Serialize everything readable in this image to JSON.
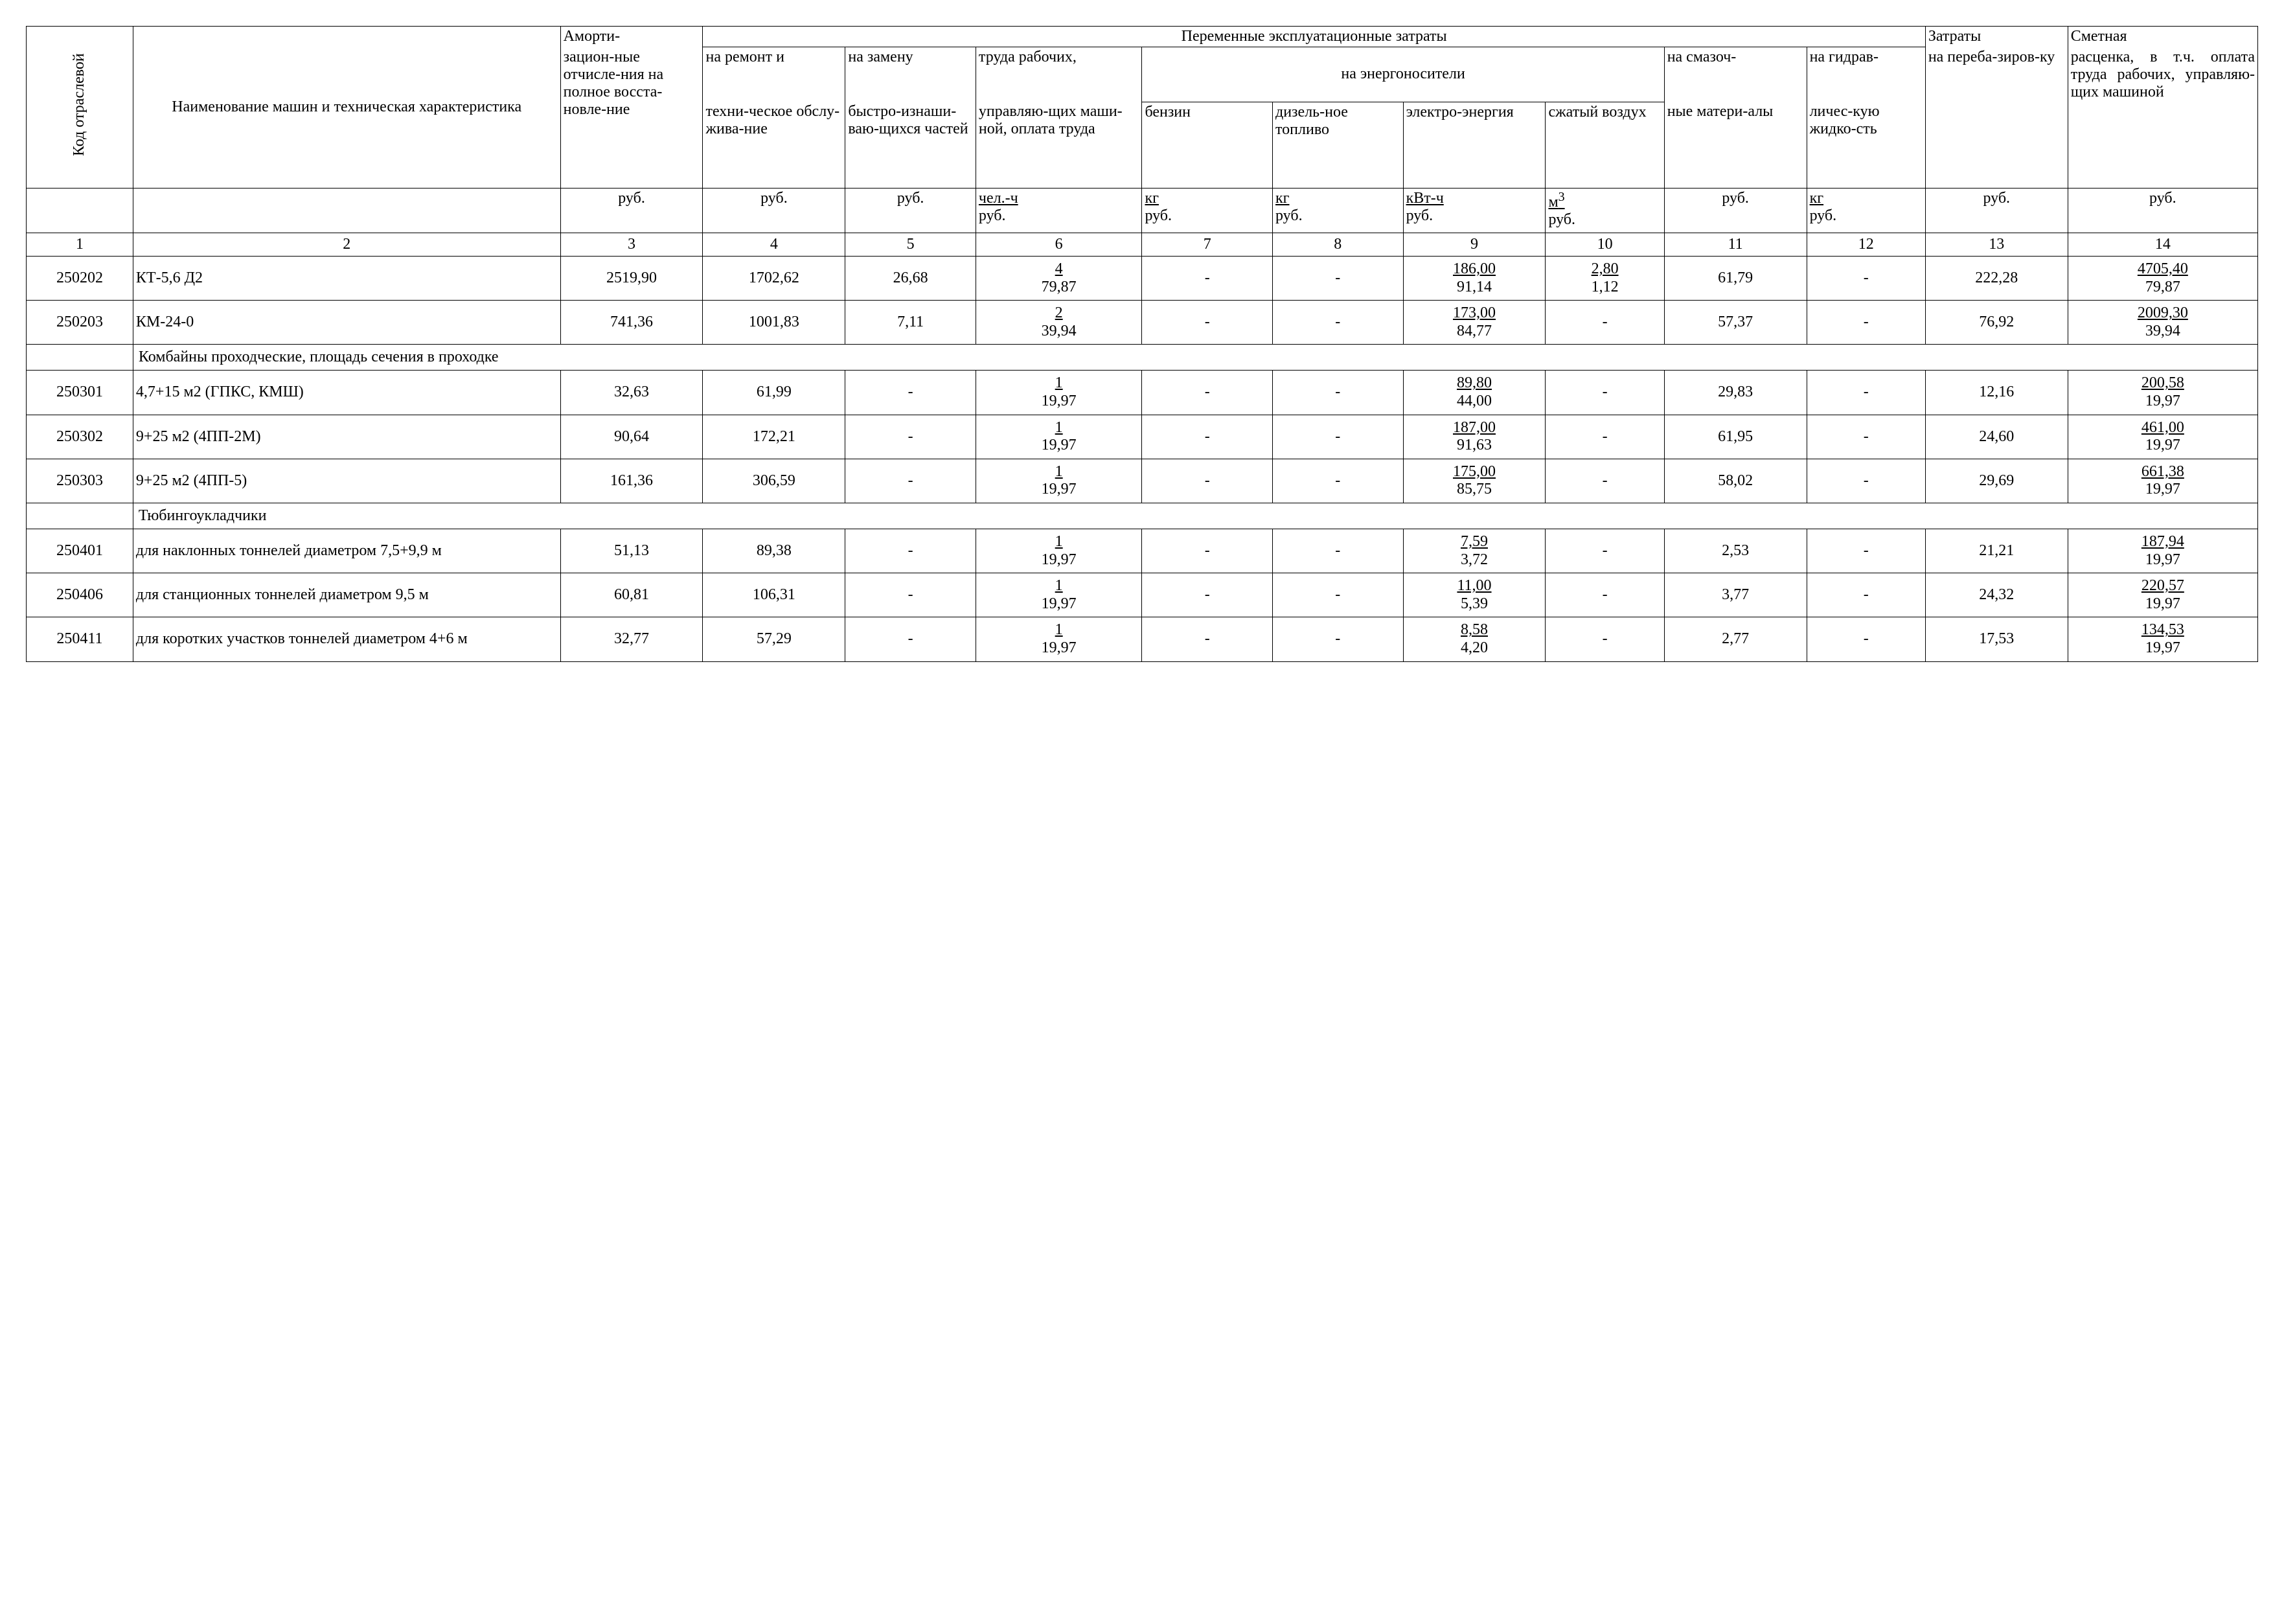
{
  "header": {
    "col1": "Код отраслевой",
    "col2": "Наименование машин и техническая характеристика",
    "col3_top": "Аморти-",
    "col3": "зацион-\nные отчисле-\nния на полное восста-\nновле-\nние",
    "var_costs": "Переменные эксплуатационные затраты",
    "col4_top": "на ремонт и",
    "col4": "техни-\nческое обслу-\nжива-\nние",
    "col5_top": "на замену",
    "col5": "быстро-\nизнаши-\nваю-\nщихся частей",
    "col6_top": "труда рабочих,",
    "col6": "управляю-щих маши-\nной, оплата труда",
    "energy": "на энергоносители",
    "col7": "бензин",
    "col8": "дизель-\nное топливо",
    "col9": "электро-\nэнергия",
    "col10": "сжатый воздух",
    "col11_top": "на смазоч-",
    "col11": "ные матери-\nалы",
    "col12_top": "на гидрав-",
    "col12": "личес-\nкую жидко-\nсть",
    "col13_top": "Затраты",
    "col13": "на переба-\nзиров-\nку",
    "col14_top": "Сметная",
    "col14": "расценка, в т.ч. оплата труда рабочих, управляю-\nщих машиной",
    "u3": "руб.",
    "u4": "руб.",
    "u5": "руб.",
    "u6t": "чел.-ч",
    "u6b": "руб.",
    "u7t": "кг",
    "u7b": "руб.",
    "u8t": "кг",
    "u8b": "руб.",
    "u9t": "кВт-ч",
    "u9b": "руб.",
    "u10t": "м",
    "u10sup": "3",
    "u10b": "руб.",
    "u11": "руб.",
    "u12t": "кг",
    "u12b": "руб.",
    "u13": "руб.",
    "u14": "руб."
  },
  "colnums": [
    "1",
    "2",
    "3",
    "4",
    "5",
    "6",
    "7",
    "8",
    "9",
    "10",
    "11",
    "12",
    "13",
    "14"
  ],
  "rows": [
    {
      "type": "data",
      "code": "250202",
      "name": "КТ-5,6 Д2",
      "c3": "2519,90",
      "c4": "1702,62",
      "c5": "26,68",
      "c6t": "4",
      "c6b": "79,87",
      "c7": "-",
      "c8": "-",
      "c9t": "186,00",
      "c9b": "91,14",
      "c10t": "2,80",
      "c10b": "1,12",
      "c11": "61,79",
      "c12": "-",
      "c13": "222,28",
      "c14t": "4705,40",
      "c14b": "79,87"
    },
    {
      "type": "data",
      "code": "250203",
      "name": "КМ-24-0",
      "c3": "741,36",
      "c4": "1001,83",
      "c5": "7,11",
      "c6t": "2",
      "c6b": "39,94",
      "c7": "-",
      "c8": "-",
      "c9t": "173,00",
      "c9b": "84,77",
      "c10t": "",
      "c10b": "-",
      "c11": "57,37",
      "c12": "-",
      "c13": "76,92",
      "c14t": "2009,30",
      "c14b": "39,94"
    },
    {
      "type": "section",
      "text": "Комбайны проходческие, площадь сечения в проходке"
    },
    {
      "type": "data",
      "code": "250301",
      "name": "4,7+15 м2 (ГПКС, КМШ)",
      "c3": "32,63",
      "c4": "61,99",
      "c5": "-",
      "c6t": "1",
      "c6b": "19,97",
      "c7": "-",
      "c8": "-",
      "c9t": "89,80",
      "c9b": "44,00",
      "c10t": "",
      "c10b": "-",
      "c11": "29,83",
      "c12": "-",
      "c13": "12,16",
      "c14t": "200,58",
      "c14b": "19,97"
    },
    {
      "type": "data",
      "code": "250302",
      "name": "9+25 м2 (4ПП-2М)",
      "c3": "90,64",
      "c4": "172,21",
      "c5": "-",
      "c6t": "1",
      "c6b": "19,97",
      "c7": "-",
      "c8": "-",
      "c9t": "187,00",
      "c9b": "91,63",
      "c10t": "",
      "c10b": "-",
      "c11": "61,95",
      "c12": "-",
      "c13": "24,60",
      "c14t": "461,00",
      "c14b": "19,97"
    },
    {
      "type": "data",
      "code": "250303",
      "name": "9+25 м2 (4ПП-5)",
      "c3": "161,36",
      "c4": "306,59",
      "c5": "-",
      "c6t": "1",
      "c6b": "19,97",
      "c7": "-",
      "c8": "-",
      "c9t": "175,00",
      "c9b": "85,75",
      "c10t": "",
      "c10b": "-",
      "c11": "58,02",
      "c12": "-",
      "c13": "29,69",
      "c14t": "661,38",
      "c14b": "19,97"
    },
    {
      "type": "section",
      "text": "Тюбингоукладчики"
    },
    {
      "type": "data",
      "code": "250401",
      "name": "для наклонных тоннелей диаметром 7,5+9,9 м",
      "c3": "51,13",
      "c4": "89,38",
      "c5": "-",
      "c6t": "1",
      "c6b": "19,97",
      "c7": "-",
      "c8": "-",
      "c9t": "7,59",
      "c9b": "3,72",
      "c10t": "",
      "c10b": "-",
      "c11": "2,53",
      "c12": "-",
      "c13": "21,21",
      "c14t": "187,94",
      "c14b": "19,97"
    },
    {
      "type": "data",
      "code": "250406",
      "name": "для станционных тоннелей диаметром 9,5 м",
      "c3": "60,81",
      "c4": "106,31",
      "c5": "-",
      "c6t": "1",
      "c6b": "19,97",
      "c7": "-",
      "c8": "-",
      "c9t": "11,00",
      "c9b": "5,39",
      "c10t": "",
      "c10b": "-",
      "c11": "3,77",
      "c12": "-",
      "c13": "24,32",
      "c14t": "220,57",
      "c14b": "19,97"
    },
    {
      "type": "data",
      "code": "250411",
      "name": "для коротких участков тоннелей диаметром 4+6 м",
      "c3": "32,77",
      "c4": "57,29",
      "c5": "-",
      "c6t": "1",
      "c6b": "19,97",
      "c7": "-",
      "c8": "-",
      "c9t": "8,58",
      "c9b": "4,20",
      "c10t": "",
      "c10b": "-",
      "c11": "2,77",
      "c12": "-",
      "c13": "17,53",
      "c14t": "134,53",
      "c14b": "19,97"
    }
  ]
}
